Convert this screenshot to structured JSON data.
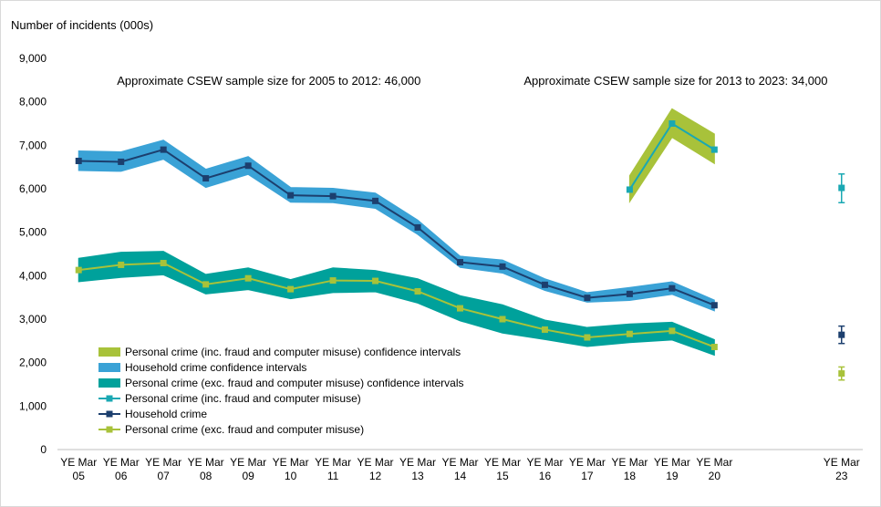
{
  "chart_data": {
    "type": "line",
    "ylabel": "Number of incidents (000s)",
    "ylim": [
      0,
      9000
    ],
    "yticks": [
      "0",
      "1,000",
      "2,000",
      "3,000",
      "4,000",
      "5,000",
      "6,000",
      "7,000",
      "8,000",
      "9,000"
    ],
    "categories": [
      {
        "top": "YE Mar",
        "bottom": "05"
      },
      {
        "top": "YE Mar",
        "bottom": "06"
      },
      {
        "top": "YE Mar",
        "bottom": "07"
      },
      {
        "top": "YE Mar",
        "bottom": "08"
      },
      {
        "top": "YE Mar",
        "bottom": "09"
      },
      {
        "top": "YE Mar",
        "bottom": "10"
      },
      {
        "top": "YE Mar",
        "bottom": "11"
      },
      {
        "top": "YE Mar",
        "bottom": "12"
      },
      {
        "top": "YE Mar",
        "bottom": "13"
      },
      {
        "top": "YE Mar",
        "bottom": "14"
      },
      {
        "top": "YE Mar",
        "bottom": "15"
      },
      {
        "top": "YE Mar",
        "bottom": "16"
      },
      {
        "top": "YE Mar",
        "bottom": "17"
      },
      {
        "top": "YE Mar",
        "bottom": "18"
      },
      {
        "top": "YE Mar",
        "bottom": "19"
      },
      {
        "top": "YE Mar",
        "bottom": "20"
      },
      {
        "top": "",
        "bottom": ""
      },
      {
        "top": "",
        "bottom": ""
      },
      {
        "top": "YE Mar",
        "bottom": "23"
      }
    ],
    "annotations": [
      {
        "text": "Approximate CSEW sample size for 2005 to 2012:  46,000",
        "anchor_category": 0
      },
      {
        "text": "Approximate CSEW sample size for 2013 to 2023:  34,000",
        "anchor_category": 9.6
      }
    ],
    "bands": [
      {
        "name": "Personal crime (inc. fraud and computer misuse) confidence intervals",
        "color": "#a8c23a",
        "lower": [
          null,
          null,
          null,
          null,
          null,
          null,
          null,
          null,
          null,
          null,
          null,
          null,
          null,
          5700,
          7180,
          6580
        ],
        "upper": [
          null,
          null,
          null,
          null,
          null,
          null,
          null,
          null,
          null,
          null,
          null,
          null,
          null,
          6300,
          7840,
          7260
        ]
      },
      {
        "name": "Household crime confidence intervals",
        "color": "#3aa2d6",
        "lower": [
          6420,
          6400,
          6680,
          6030,
          6330,
          5690,
          5680,
          5550,
          4950,
          4190,
          4060,
          3660,
          3390,
          3430,
          3570,
          3190
        ],
        "upper": [
          6870,
          6850,
          7120,
          6450,
          6740,
          6030,
          6010,
          5900,
          5280,
          4450,
          4360,
          3930,
          3610,
          3730,
          3860,
          3440
        ]
      },
      {
        "name": "Personal crime (exc. fraud and computer misuse) confidence intervals",
        "color": "#00a19b",
        "lower": [
          3860,
          3960,
          4020,
          3580,
          3680,
          3470,
          3610,
          3630,
          3370,
          2960,
          2680,
          2530,
          2370,
          2460,
          2520,
          2170
        ],
        "upper": [
          4400,
          4540,
          4560,
          4030,
          4180,
          3910,
          4180,
          4120,
          3930,
          3540,
          3330,
          2980,
          2810,
          2890,
          2930,
          2530
        ]
      }
    ],
    "series": [
      {
        "name": "Personal crime (inc. fraud and computer misuse)",
        "color": "#1aa8b3",
        "marker": "#1aa8b3",
        "values": [
          null,
          null,
          null,
          null,
          null,
          null,
          null,
          null,
          null,
          null,
          null,
          null,
          null,
          5980,
          7500,
          6900,
          null,
          null,
          6020
        ],
        "errors": [
          null,
          null,
          null,
          null,
          null,
          null,
          null,
          null,
          null,
          null,
          null,
          null,
          null,
          null,
          null,
          null,
          null,
          null,
          [
            5680,
            6340
          ]
        ]
      },
      {
        "name": "Household crime",
        "color": "#1c3f6e",
        "marker": "#1c3f6e",
        "values": [
          6640,
          6620,
          6900,
          6240,
          6530,
          5850,
          5830,
          5720,
          5110,
          4310,
          4210,
          3790,
          3490,
          3580,
          3710,
          3320,
          null,
          null,
          2640
        ],
        "errors": [
          null,
          null,
          null,
          null,
          null,
          null,
          null,
          null,
          null,
          null,
          null,
          null,
          null,
          null,
          null,
          null,
          null,
          null,
          [
            2440,
            2840
          ]
        ]
      },
      {
        "name": "Personal crime (exc. fraud and computer misuse)",
        "color": "#a8c23a",
        "marker": "#a8c23a",
        "values": [
          4130,
          4250,
          4290,
          3800,
          3940,
          3690,
          3890,
          3880,
          3640,
          3250,
          3000,
          2760,
          2580,
          2660,
          2730,
          2360,
          null,
          null,
          1750
        ],
        "errors": [
          null,
          null,
          null,
          null,
          null,
          null,
          null,
          null,
          null,
          null,
          null,
          null,
          null,
          null,
          null,
          null,
          null,
          null,
          [
            1600,
            1900
          ]
        ]
      }
    ],
    "legend": [
      {
        "label": "Personal crime (inc. fraud and computer misuse) confidence intervals",
        "kind": "band",
        "color": "#a8c23a"
      },
      {
        "label": "Household crime confidence intervals",
        "kind": "band",
        "color": "#3aa2d6"
      },
      {
        "label": "Personal crime (exc. fraud and computer misuse) confidence intervals",
        "kind": "band",
        "color": "#00a19b"
      },
      {
        "label": "Personal crime (inc. fraud and computer misuse)",
        "kind": "line",
        "color": "#1aa8b3"
      },
      {
        "label": "Household crime",
        "kind": "line",
        "color": "#1c3f6e"
      },
      {
        "label": "Personal crime (exc. fraud and computer misuse)",
        "kind": "line",
        "color": "#a8c23a"
      }
    ],
    "legend_position": "bottom-left",
    "grid": false
  }
}
